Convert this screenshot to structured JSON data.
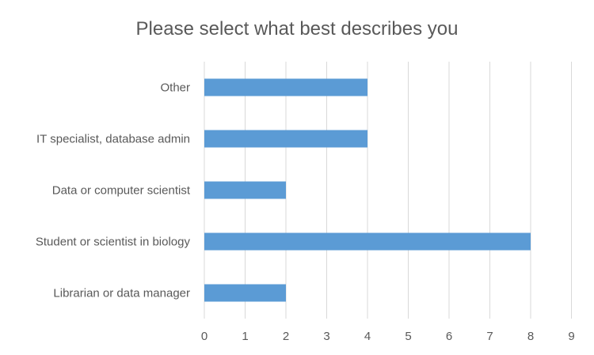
{
  "chart_data": {
    "type": "bar",
    "orientation": "horizontal",
    "title": "Please select what best describes you",
    "categories": [
      "Librarian or data manager",
      "Student or scientist in biology",
      "Data or computer scientist",
      "IT specialist, database admin",
      "Other"
    ],
    "values": [
      2,
      8,
      2,
      4,
      4
    ],
    "xlim": [
      0,
      9
    ],
    "xticks": [
      "0",
      "1",
      "2",
      "3",
      "4",
      "5",
      "6",
      "7",
      "8",
      "9"
    ],
    "xlabel": "",
    "ylabel": "",
    "grid": "vertical",
    "legend": "none",
    "bar_color": "#5b9bd5"
  }
}
